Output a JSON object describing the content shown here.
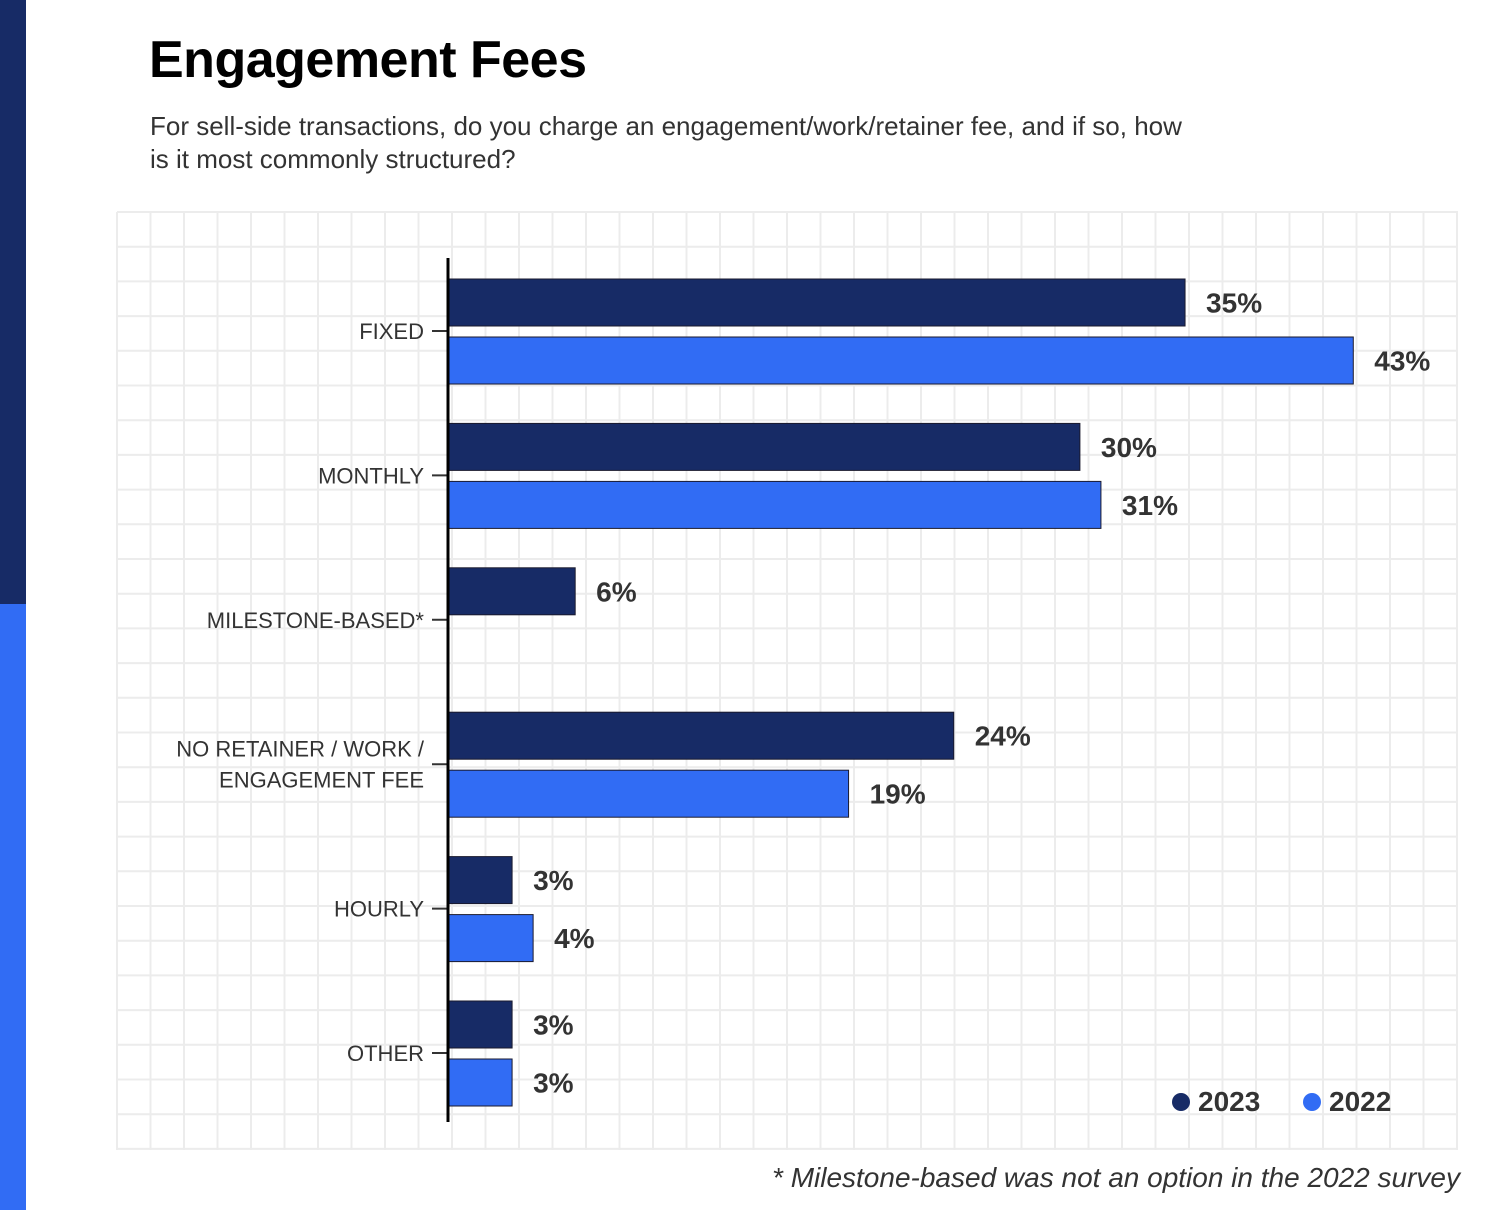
{
  "title": "Engagement Fees",
  "subtitle": "For sell-side transactions, do you charge an engagement/work/retainer fee, and if so, how is it most commonly structured?",
  "footnote": "* Milestone-based was not an option in the 2022 survey",
  "colors": {
    "2023": "#172b66",
    "2022": "#316cf4",
    "grid": "#ececec"
  },
  "chart_data": {
    "type": "bar",
    "orientation": "horizontal",
    "categories": [
      [
        "FIXED"
      ],
      [
        "MONTHLY"
      ],
      [
        "MILESTONE-BASED*"
      ],
      [
        "NO RETAINER / WORK /",
        "ENGAGEMENT FEE"
      ],
      [
        "HOURLY"
      ],
      [
        "OTHER"
      ]
    ],
    "series": [
      {
        "name": "2023",
        "values": [
          35,
          30,
          6,
          24,
          3,
          3
        ],
        "labels": [
          "35%",
          "30%",
          "6%",
          "24%",
          "3%",
          "3%"
        ]
      },
      {
        "name": "2022",
        "values": [
          43,
          31,
          null,
          19,
          4,
          3
        ],
        "labels": [
          "43%",
          "31%",
          "",
          "19%",
          "4%",
          "3%"
        ]
      }
    ],
    "xlim": [
      0,
      48
    ],
    "grid": true,
    "legend": "bottom-right"
  }
}
